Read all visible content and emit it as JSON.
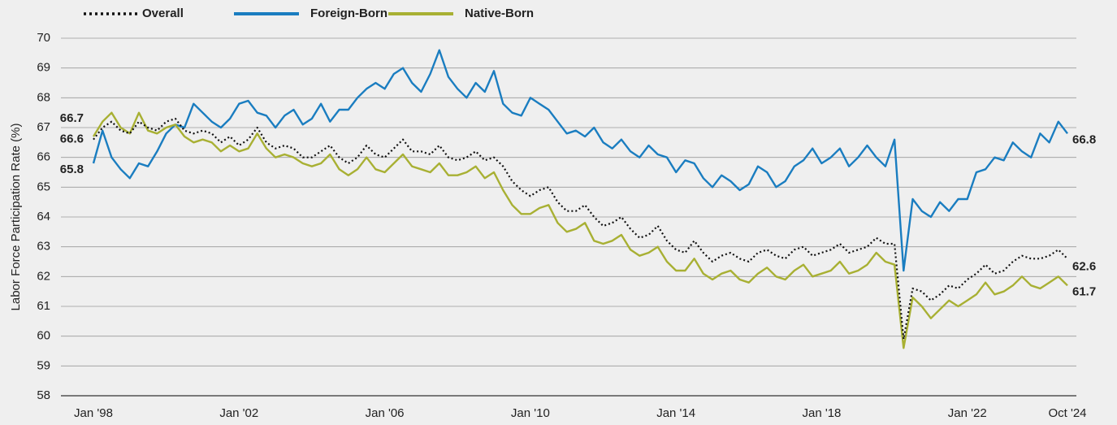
{
  "chart_data": {
    "type": "line",
    "y_label": "Labor Force Participation Rate (%)",
    "categories": [
      "Jan '98",
      null,
      null,
      null,
      null,
      null,
      null,
      null,
      null,
      null,
      null,
      null,
      null,
      null,
      null,
      null,
      "Jan '02",
      null,
      null,
      null,
      null,
      null,
      null,
      null,
      null,
      null,
      null,
      null,
      null,
      null,
      null,
      null,
      "Jan '06",
      null,
      null,
      null,
      null,
      null,
      null,
      null,
      null,
      null,
      null,
      null,
      null,
      null,
      null,
      null,
      "Jan '10",
      null,
      null,
      null,
      null,
      null,
      null,
      null,
      null,
      null,
      null,
      null,
      null,
      null,
      null,
      null,
      "Jan '14",
      null,
      null,
      null,
      null,
      null,
      null,
      null,
      null,
      null,
      null,
      null,
      null,
      null,
      null,
      null,
      "Jan '18",
      null,
      null,
      null,
      null,
      null,
      null,
      null,
      null,
      null,
      null,
      null,
      null,
      null,
      null,
      null,
      "Jan '22",
      null,
      null,
      null,
      null,
      null,
      null,
      null,
      null,
      null,
      null,
      "Oct '24"
    ],
    "series": [
      {
        "name": "Overall",
        "color": "#111111",
        "style": "dotted",
        "values": [
          66.6,
          67.0,
          67.2,
          66.9,
          66.8,
          67.2,
          67.0,
          66.9,
          67.2,
          67.3,
          66.9,
          66.8,
          66.9,
          66.8,
          66.5,
          66.7,
          66.4,
          66.6,
          67.0,
          66.5,
          66.3,
          66.4,
          66.3,
          66.0,
          66.0,
          66.2,
          66.4,
          66.0,
          65.8,
          66.0,
          66.4,
          66.1,
          66.0,
          66.3,
          66.6,
          66.2,
          66.2,
          66.1,
          66.4,
          66.0,
          65.9,
          66.0,
          66.2,
          65.9,
          66.0,
          65.7,
          65.2,
          64.9,
          64.7,
          64.9,
          65.0,
          64.5,
          64.2,
          64.2,
          64.4,
          64.0,
          63.7,
          63.8,
          64.0,
          63.6,
          63.3,
          63.4,
          63.7,
          63.2,
          62.9,
          62.8,
          63.2,
          62.8,
          62.5,
          62.7,
          62.8,
          62.6,
          62.5,
          62.8,
          62.9,
          62.7,
          62.6,
          62.9,
          63.0,
          62.7,
          62.8,
          62.9,
          63.1,
          62.8,
          62.9,
          63.0,
          63.3,
          63.1,
          63.1,
          59.9,
          61.6,
          61.5,
          61.2,
          61.4,
          61.7,
          61.6,
          61.9,
          62.1,
          62.4,
          62.1,
          62.2,
          62.5,
          62.7,
          62.6,
          62.6,
          62.7,
          62.9,
          62.6
        ]
      },
      {
        "name": "Foreign-Born",
        "color": "#1a7dc0",
        "style": "solid",
        "values": [
          65.8,
          66.9,
          66.0,
          65.6,
          65.3,
          65.8,
          65.7,
          66.2,
          66.8,
          67.1,
          67.0,
          67.8,
          67.5,
          67.2,
          67.0,
          67.3,
          67.8,
          67.9,
          67.5,
          67.4,
          67.0,
          67.4,
          67.6,
          67.1,
          67.3,
          67.8,
          67.2,
          67.6,
          67.6,
          68.0,
          68.3,
          68.5,
          68.3,
          68.8,
          69.0,
          68.5,
          68.2,
          68.8,
          69.6,
          68.7,
          68.3,
          68.0,
          68.5,
          68.2,
          68.9,
          67.8,
          67.5,
          67.4,
          68.0,
          67.8,
          67.6,
          67.2,
          66.8,
          66.9,
          66.7,
          67.0,
          66.5,
          66.3,
          66.6,
          66.2,
          66.0,
          66.4,
          66.1,
          66.0,
          65.5,
          65.9,
          65.8,
          65.3,
          65.0,
          65.4,
          65.2,
          64.9,
          65.1,
          65.7,
          65.5,
          65.0,
          65.2,
          65.7,
          65.9,
          66.3,
          65.8,
          66.0,
          66.3,
          65.7,
          66.0,
          66.4,
          66.0,
          65.7,
          66.6,
          62.2,
          64.6,
          64.2,
          64.0,
          64.5,
          64.2,
          64.6,
          64.6,
          65.5,
          65.6,
          66.0,
          65.9,
          66.5,
          66.2,
          66.0,
          66.8,
          66.5,
          67.2,
          66.8
        ]
      },
      {
        "name": "Native-Born",
        "color": "#a8b033",
        "style": "solid",
        "values": [
          66.7,
          67.2,
          67.5,
          67.0,
          66.8,
          67.5,
          66.9,
          66.8,
          67.0,
          67.1,
          66.7,
          66.5,
          66.6,
          66.5,
          66.2,
          66.4,
          66.2,
          66.3,
          66.8,
          66.3,
          66.0,
          66.1,
          66.0,
          65.8,
          65.7,
          65.8,
          66.1,
          65.6,
          65.4,
          65.6,
          66.0,
          65.6,
          65.5,
          65.8,
          66.1,
          65.7,
          65.6,
          65.5,
          65.8,
          65.4,
          65.4,
          65.5,
          65.7,
          65.3,
          65.5,
          64.9,
          64.4,
          64.1,
          64.1,
          64.3,
          64.4,
          63.8,
          63.5,
          63.6,
          63.8,
          63.2,
          63.1,
          63.2,
          63.4,
          62.9,
          62.7,
          62.8,
          63.0,
          62.5,
          62.2,
          62.2,
          62.6,
          62.1,
          61.9,
          62.1,
          62.2,
          61.9,
          61.8,
          62.1,
          62.3,
          62.0,
          61.9,
          62.2,
          62.4,
          62.0,
          62.1,
          62.2,
          62.5,
          62.1,
          62.2,
          62.4,
          62.8,
          62.5,
          62.4,
          59.6,
          61.3,
          61.0,
          60.6,
          60.9,
          61.2,
          61.0,
          61.2,
          61.4,
          61.8,
          61.4,
          61.5,
          61.7,
          62.0,
          61.7,
          61.6,
          61.8,
          62.0,
          61.7
        ]
      }
    ],
    "ylim": [
      58,
      70
    ],
    "yticks": [
      58,
      59,
      60,
      61,
      62,
      63,
      64,
      65,
      66,
      67,
      68,
      69,
      70
    ],
    "grid": true,
    "legend": "top-left"
  }
}
